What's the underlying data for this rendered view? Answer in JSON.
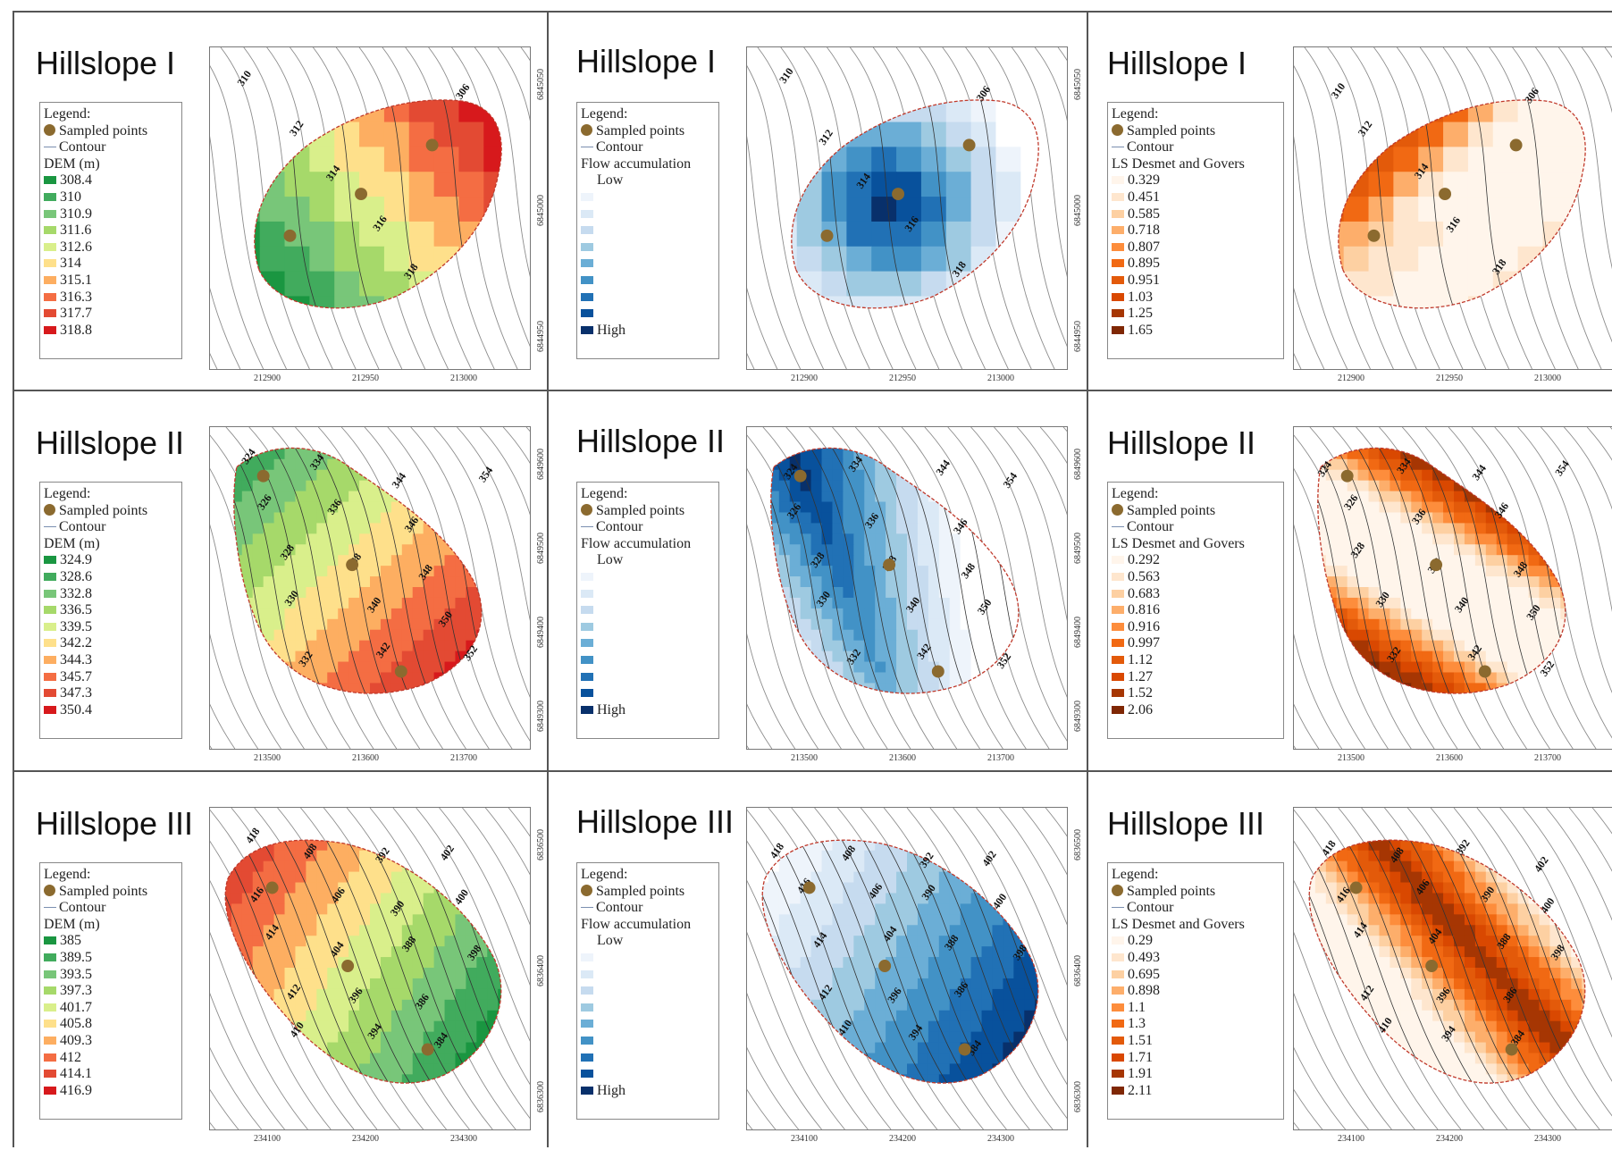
{
  "legend_heading": "Legend:",
  "sampled_points_label": "Sampled points",
  "contour_label": "Contour",
  "sample_point_color": "#8b6a2f",
  "rows": [
    {
      "title": "Hillslope I",
      "x_ticks": [
        "212900",
        "212950",
        "213000"
      ],
      "y_ticks": [
        "6844950",
        "6845000",
        "6845050"
      ],
      "contour_labels": [
        "310",
        "312",
        "314",
        "316",
        "318",
        "306"
      ],
      "dem": {
        "title": "DEM (m)",
        "classes": [
          "308.4",
          "310",
          "310.9",
          "311.6",
          "312.6",
          "314",
          "315.1",
          "316.3",
          "317.7",
          "318.8"
        ],
        "colors": [
          "#1a9641",
          "#41ab5d",
          "#78c679",
          "#a6d96a",
          "#d9ef8b",
          "#fee08b",
          "#fdae61",
          "#f46d43",
          "#e34a33",
          "#d7191c"
        ]
      },
      "flow": {
        "title": "Flow accumulation",
        "low": "Low",
        "high": "High",
        "colors": [
          "#ffffff",
          "#eef4fb",
          "#dbe9f6",
          "#c6dbef",
          "#9ecae1",
          "#6baed6",
          "#4292c6",
          "#2171b5",
          "#08519c",
          "#08306b"
        ]
      },
      "ls": {
        "title": "LS Desmet and Govers",
        "classes": [
          "0.329",
          "0.451",
          "0.585",
          "0.718",
          "0.807",
          "0.895",
          "0.951",
          "1.03",
          "1.25",
          "1.65"
        ],
        "colors": [
          "#fff5eb",
          "#fee6ce",
          "#fdd0a2",
          "#fdae6b",
          "#fd8d3c",
          "#f16913",
          "#e35a0a",
          "#d94801",
          "#a63603",
          "#7f2704"
        ]
      }
    },
    {
      "title": "Hillslope II",
      "x_ticks": [
        "213500",
        "213600",
        "213700"
      ],
      "y_ticks": [
        "6849300",
        "6849400",
        "6849500",
        "6849600"
      ],
      "contour_labels": [
        "324",
        "326",
        "328",
        "330",
        "332",
        "334",
        "336",
        "338",
        "340",
        "342",
        "344",
        "346",
        "348",
        "350",
        "352",
        "354"
      ],
      "dem": {
        "title": "DEM (m)",
        "classes": [
          "324.9",
          "328.6",
          "332.8",
          "336.5",
          "339.5",
          "342.2",
          "344.3",
          "345.7",
          "347.3",
          "350.4"
        ],
        "colors": [
          "#1a9641",
          "#41ab5d",
          "#78c679",
          "#a6d96a",
          "#d9ef8b",
          "#fee08b",
          "#fdae61",
          "#f46d43",
          "#e34a33",
          "#d7191c"
        ]
      },
      "flow": {
        "title": "Flow accumulation",
        "low": "Low",
        "high": "High",
        "colors": [
          "#ffffff",
          "#eef4fb",
          "#dbe9f6",
          "#c6dbef",
          "#9ecae1",
          "#6baed6",
          "#4292c6",
          "#2171b5",
          "#08519c",
          "#08306b"
        ]
      },
      "ls": {
        "title": "LS Desmet and Govers",
        "classes": [
          "0.292",
          "0.563",
          "0.683",
          "0.816",
          "0.916",
          "0.997",
          "1.12",
          "1.27",
          "1.52",
          "2.06"
        ],
        "colors": [
          "#fff5eb",
          "#fee6ce",
          "#fdd0a2",
          "#fdae6b",
          "#fd8d3c",
          "#f16913",
          "#e35a0a",
          "#d94801",
          "#a63603",
          "#7f2704"
        ]
      }
    },
    {
      "title": "Hillslope III",
      "x_ticks": [
        "234100",
        "234200",
        "234300"
      ],
      "y_ticks": [
        "6836300",
        "6836400",
        "6836500"
      ],
      "contour_labels": [
        "418",
        "416",
        "414",
        "412",
        "410",
        "408",
        "406",
        "404",
        "396",
        "394",
        "392",
        "390",
        "388",
        "386",
        "384",
        "402",
        "400",
        "398"
      ],
      "dem": {
        "title": "DEM (m)",
        "classes": [
          "385",
          "389.5",
          "393.5",
          "397.3",
          "401.7",
          "405.8",
          "409.3",
          "412",
          "414.1",
          "416.9"
        ],
        "colors": [
          "#1a9641",
          "#41ab5d",
          "#78c679",
          "#a6d96a",
          "#d9ef8b",
          "#fee08b",
          "#fdae61",
          "#f46d43",
          "#e34a33",
          "#d7191c"
        ]
      },
      "flow": {
        "title": "Flow accumulation",
        "low": "Low",
        "high": "High",
        "colors": [
          "#ffffff",
          "#eef4fb",
          "#dbe9f6",
          "#c6dbef",
          "#9ecae1",
          "#6baed6",
          "#4292c6",
          "#2171b5",
          "#08519c",
          "#08306b"
        ]
      },
      "ls": {
        "title": "LS Desmet and Govers",
        "classes": [
          "0.29",
          "0.493",
          "0.695",
          "0.898",
          "1.1",
          "1.3",
          "1.51",
          "1.71",
          "1.91",
          "2.11"
        ],
        "colors": [
          "#fff5eb",
          "#fee6ce",
          "#fdd0a2",
          "#fdae6b",
          "#fd8d3c",
          "#f16913",
          "#e35a0a",
          "#d94801",
          "#a63603",
          "#7f2704"
        ]
      }
    }
  ]
}
